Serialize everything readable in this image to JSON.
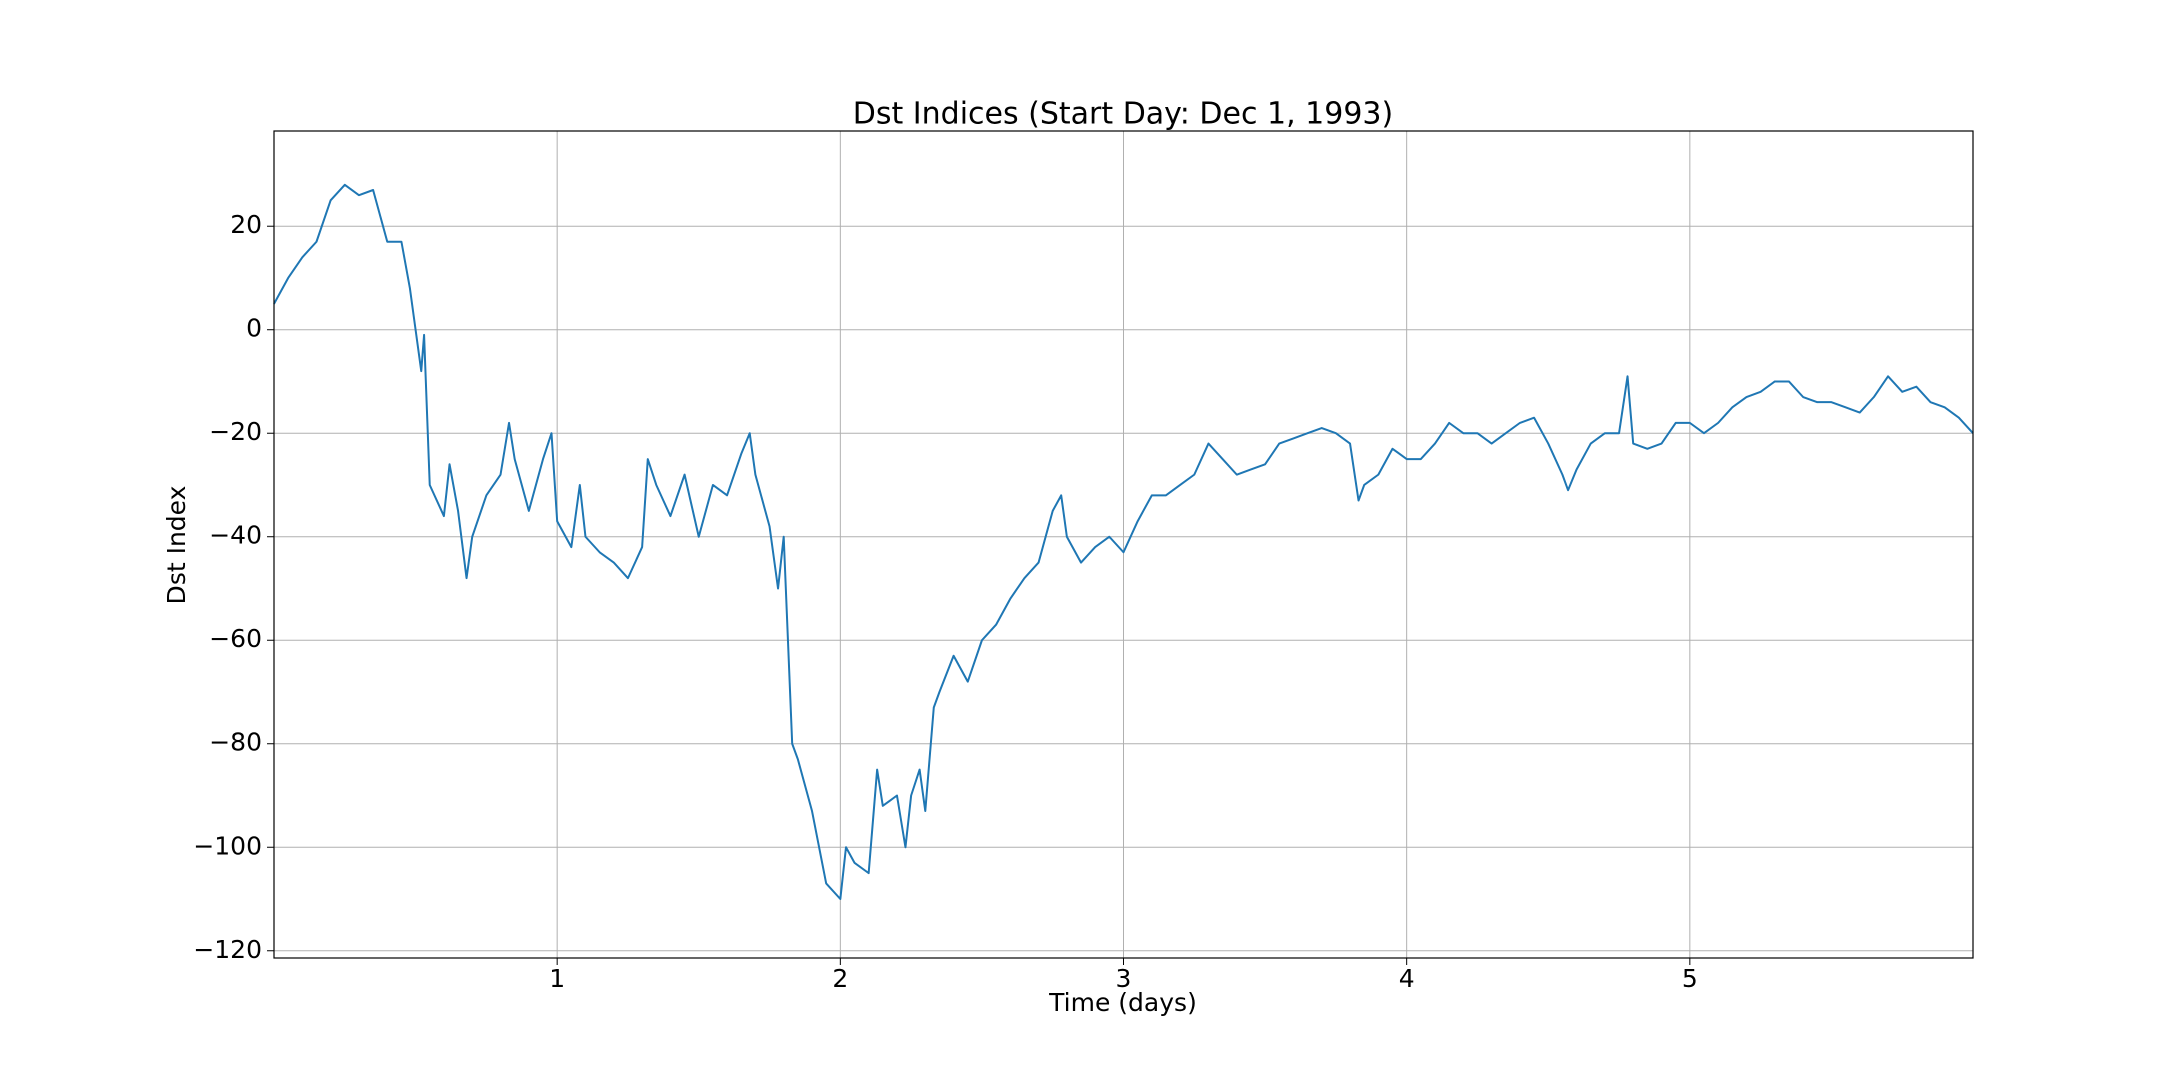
{
  "chart_data": {
    "type": "line",
    "title": "Dst Indices (Start Day: Dec 1, 1993)",
    "x_label": "Time (days)",
    "y_label": "Dst Index",
    "x": [
      0,
      0.05,
      0.1,
      0.15,
      0.2,
      0.25,
      0.3,
      0.35,
      0.4,
      0.45,
      0.48,
      0.5,
      0.52,
      0.53,
      0.55,
      0.6,
      0.62,
      0.65,
      0.68,
      0.7,
      0.75,
      0.8,
      0.83,
      0.85,
      0.9,
      0.95,
      0.98,
      1,
      1.05,
      1.08,
      1.1,
      1.15,
      1.2,
      1.25,
      1.3,
      1.32,
      1.35,
      1.4,
      1.45,
      1.5,
      1.55,
      1.6,
      1.65,
      1.68,
      1.7,
      1.75,
      1.78,
      1.8,
      1.83,
      1.85,
      1.9,
      1.95,
      2,
      2.02,
      2.05,
      2.1,
      2.13,
      2.15,
      2.2,
      2.23,
      2.25,
      2.28,
      2.3,
      2.33,
      2.35,
      2.4,
      2.45,
      2.5,
      2.55,
      2.6,
      2.65,
      2.7,
      2.75,
      2.78,
      2.8,
      2.85,
      2.9,
      2.95,
      3,
      3.05,
      3.1,
      3.15,
      3.2,
      3.25,
      3.3,
      3.35,
      3.4,
      3.45,
      3.5,
      3.55,
      3.6,
      3.65,
      3.7,
      3.75,
      3.8,
      3.83,
      3.85,
      3.9,
      3.95,
      4,
      4.05,
      4.1,
      4.15,
      4.2,
      4.25,
      4.3,
      4.35,
      4.4,
      4.45,
      4.5,
      4.55,
      4.57,
      4.6,
      4.65,
      4.7,
      4.75,
      4.78,
      4.8,
      4.85,
      4.9,
      4.95,
      5,
      5.05,
      5.1,
      5.15,
      5.2,
      5.25,
      5.3,
      5.35,
      5.4,
      5.45,
      5.5,
      5.55,
      5.6,
      5.65,
      5.7,
      5.75,
      5.8,
      5.85,
      5.9,
      5.95,
      6
    ],
    "series": [
      {
        "name": "Dst",
        "color": "#1f77b4",
        "values": [
          5,
          10,
          14,
          17,
          25,
          28,
          26,
          27,
          17,
          17,
          8,
          0,
          -8,
          -1,
          -30,
          -36,
          -26,
          -35,
          -48,
          -40,
          -32,
          -28,
          -18,
          -25,
          -35,
          -25,
          -20,
          -37,
          -42,
          -30,
          -40,
          -43,
          -45,
          -48,
          -42,
          -25,
          -30,
          -36,
          -28,
          -40,
          -30,
          -32,
          -24,
          -20,
          -28,
          -38,
          -50,
          -40,
          -80,
          -83,
          -93,
          -107,
          -110,
          -100,
          -103,
          -105,
          -85,
          -92,
          -90,
          -100,
          -90,
          -85,
          -93,
          -73,
          -70,
          -63,
          -68,
          -60,
          -57,
          -52,
          -48,
          -45,
          -35,
          -32,
          -40,
          -45,
          -42,
          -40,
          -43,
          -37,
          -32,
          -32,
          -30,
          -28,
          -22,
          -25,
          -28,
          -27,
          -26,
          -22,
          -21,
          -20,
          -19,
          -20,
          -22,
          -33,
          -30,
          -28,
          -23,
          -25,
          -25,
          -22,
          -18,
          -20,
          -20,
          -22,
          -20,
          -18,
          -17,
          -22,
          -28,
          -31,
          -27,
          -22,
          -20,
          -20,
          -9,
          -22,
          -23,
          -22,
          -18,
          -18,
          -20,
          -18,
          -15,
          -13,
          -12,
          -10,
          -10,
          -13,
          -14,
          -14,
          -15,
          -16,
          -13,
          -9,
          -12,
          -11,
          -14,
          -15,
          -17,
          -20
        ]
      }
    ],
    "xlim": [
      0,
      6
    ],
    "xticks": [
      1,
      2,
      3,
      4,
      5
    ],
    "ylim": [
      -121.4,
      38.4
    ],
    "yticks": [
      {
        "value": -120,
        "label": "−120"
      },
      {
        "value": -100,
        "label": "−100"
      },
      {
        "value": -80,
        "label": "−80"
      },
      {
        "value": -60,
        "label": "−60"
      },
      {
        "value": -40,
        "label": "−40"
      },
      {
        "value": -20,
        "label": "−20"
      },
      0,
      20
    ],
    "grid": true
  }
}
